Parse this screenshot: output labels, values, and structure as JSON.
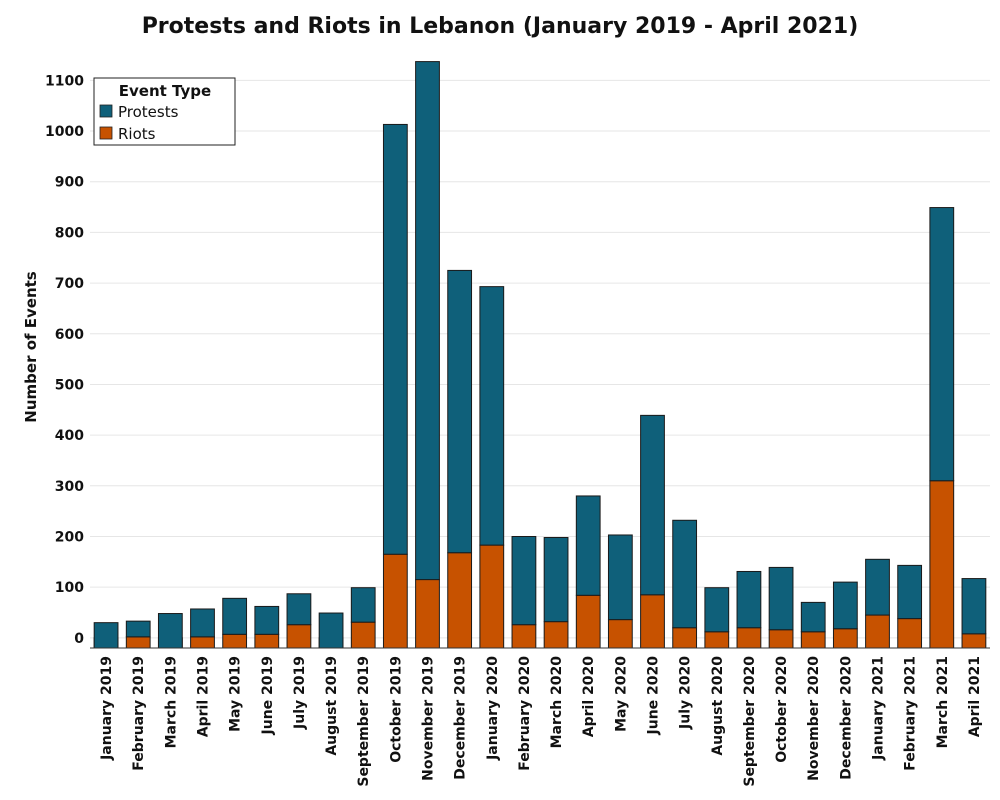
{
  "chart_data": {
    "type": "bar",
    "stacked": true,
    "title": "Protests and Riots in Lebanon (January 2019 - April 2021)",
    "xlabel": "",
    "ylabel": "Number of Events",
    "ylim": [
      -20,
      1150
    ],
    "yticks": [
      0,
      100,
      200,
      300,
      400,
      500,
      600,
      700,
      800,
      900,
      1000,
      1100
    ],
    "grid": true,
    "legend": {
      "title": "Event Type",
      "position": "top-left"
    },
    "categories": [
      "January 2019",
      "February 2019",
      "March 2019",
      "April 2019",
      "May 2019",
      "June 2019",
      "July 2019",
      "August 2019",
      "September 2019",
      "October 2019",
      "November 2019",
      "December 2019",
      "January 2020",
      "February 2020",
      "March 2020",
      "April 2020",
      "May 2020",
      "June 2020",
      "July 2020",
      "August 2020",
      "September 2020",
      "October 2020",
      "November 2020",
      "December 2020",
      "January 2021",
      "February 2021",
      "March 2021",
      "April 2021"
    ],
    "series": [
      {
        "name": "Riots",
        "color": "#c75200",
        "values": [
          0,
          2,
          0,
          2,
          7,
          7,
          26,
          0,
          31,
          165,
          115,
          168,
          183,
          26,
          32,
          84,
          36,
          85,
          20,
          12,
          20,
          16,
          12,
          18,
          45,
          38,
          310,
          8
        ]
      },
      {
        "name": "Protests",
        "color": "#0f607a",
        "values": [
          30,
          31,
          48,
          55,
          71,
          55,
          61,
          49,
          68,
          848,
          1022,
          557,
          510,
          174,
          166,
          196,
          167,
          354,
          212,
          87,
          111,
          123,
          58,
          92,
          110,
          105,
          539,
          109
        ]
      }
    ]
  }
}
